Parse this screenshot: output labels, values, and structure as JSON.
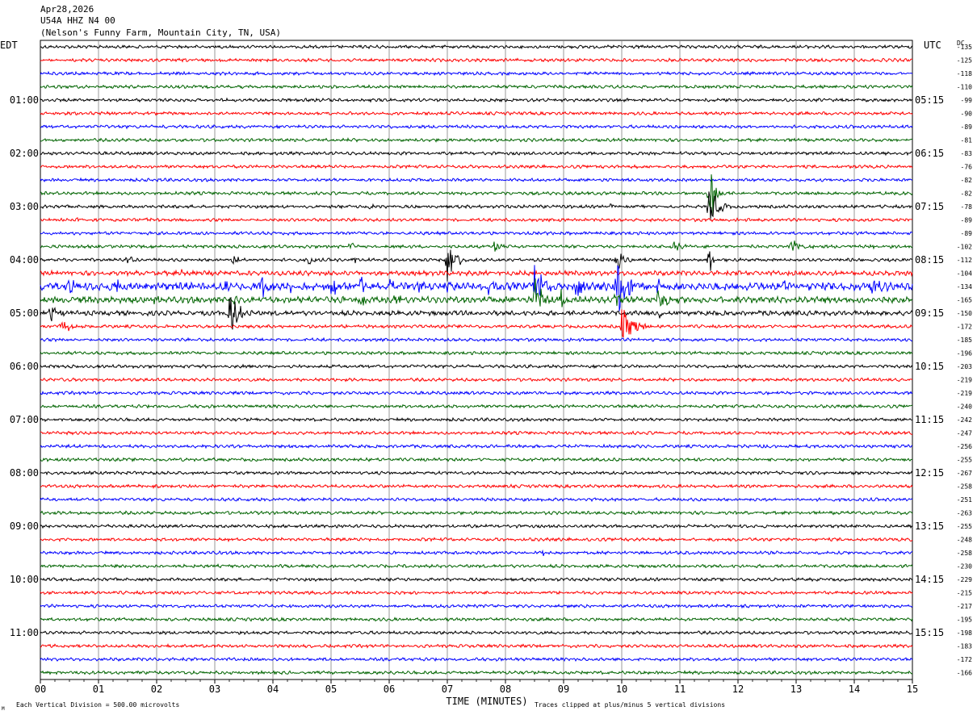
{
  "header": {
    "date": "Apr28,2026",
    "station": "U54A HHZ N4 00",
    "location": "(Nelson's Funny Farm, Mountain City, TN, USA)"
  },
  "left_axis_title": "EDT",
  "right_axis_title": "UTC",
  "dc_title": "DC",
  "footer": {
    "scale_note": "Each Vertical Division =  500.00 microvolts",
    "xlabel": "TIME (MINUTES)",
    "clip_note": "Traces clipped at plus/minus 5 vertical divisions",
    "corner_mark": "M"
  },
  "colors": {
    "cycle": [
      "#000000",
      "#ff0000",
      "#0000ff",
      "#006400"
    ],
    "grid": "#808080"
  },
  "chart_data": {
    "type": "line",
    "title": "",
    "xlabel": "TIME (MINUTES)",
    "ylabel": "",
    "xlim": [
      0,
      15
    ],
    "x_ticks": [
      "00",
      "01",
      "02",
      "03",
      "04",
      "05",
      "06",
      "07",
      "08",
      "09",
      "10",
      "11",
      "12",
      "13",
      "14",
      "15"
    ],
    "rows": 48,
    "minutes_per_row": 15,
    "left_labels": [
      "01:00",
      "02:00",
      "03:00",
      "04:00",
      "05:00",
      "06:00",
      "07:00",
      "08:00",
      "09:00",
      "10:00",
      "11:00"
    ],
    "right_labels": [
      "05:15",
      "06:15",
      "07:15",
      "08:15",
      "09:15",
      "10:15",
      "11:15",
      "12:15",
      "13:15",
      "14:15",
      "15:15"
    ],
    "dc_offsets": [
      "-135",
      "-125",
      "-118",
      "-110",
      "-99",
      "-90",
      "-89",
      "-81",
      "-83",
      "-76",
      "-82",
      "-82",
      "-78",
      "-89",
      "-89",
      "-102",
      "-112",
      "-104",
      "-134",
      "-165",
      "-150",
      "-172",
      "-185",
      "-196",
      "-203",
      "-219",
      "-219",
      "-240",
      "-242",
      "-247",
      "-256",
      "-255",
      "-267",
      "-258",
      "-251",
      "-263",
      "-255",
      "-248",
      "-258",
      "-230",
      "-229",
      "-215",
      "-217",
      "-195",
      "-198",
      "-183",
      "-172",
      "-166"
    ],
    "noise_amplitude": [
      2,
      2,
      2,
      2,
      2,
      2,
      2,
      2,
      2,
      2,
      2,
      2,
      2,
      2,
      2,
      2,
      2,
      3,
      5,
      4,
      3,
      2,
      2,
      2,
      2,
      2,
      2,
      2,
      2,
      2,
      2,
      2,
      2,
      2,
      2,
      2,
      2,
      2,
      2,
      2,
      2,
      2,
      2,
      2,
      2,
      2,
      2,
      2
    ],
    "events": [
      {
        "row": 11,
        "x": 11.5,
        "amp": 56,
        "dur": 0.2
      },
      {
        "row": 11,
        "x": 11.55,
        "amp": 18,
        "dur": 0.25
      },
      {
        "row": 12,
        "x": 5.6,
        "amp": 6,
        "dur": 0.25
      },
      {
        "row": 12,
        "x": 9.8,
        "amp": 5,
        "dur": 0.2
      },
      {
        "row": 12,
        "x": 11.5,
        "amp": 26,
        "dur": 0.4
      },
      {
        "row": 12,
        "x": 14.3,
        "amp": 5,
        "dur": 0.15
      },
      {
        "row": 13,
        "x": 0.6,
        "amp": 5,
        "dur": 0.15
      },
      {
        "row": 13,
        "x": 1.8,
        "amp": 3,
        "dur": 0.1
      },
      {
        "row": 15,
        "x": 5.3,
        "amp": 7,
        "dur": 0.25
      },
      {
        "row": 15,
        "x": 7.8,
        "amp": 9,
        "dur": 0.3
      },
      {
        "row": 15,
        "x": 10.9,
        "amp": 7,
        "dur": 0.3
      },
      {
        "row": 15,
        "x": 12.9,
        "amp": 12,
        "dur": 0.4
      },
      {
        "row": 15,
        "x": 14.3,
        "amp": 5,
        "dur": 0.15
      },
      {
        "row": 16,
        "x": 1.5,
        "amp": 5,
        "dur": 0.2
      },
      {
        "row": 16,
        "x": 3.3,
        "amp": 8,
        "dur": 0.25
      },
      {
        "row": 16,
        "x": 4.6,
        "amp": 10,
        "dur": 0.2
      },
      {
        "row": 16,
        "x": 5.4,
        "amp": 6,
        "dur": 0.15
      },
      {
        "row": 16,
        "x": 7.0,
        "amp": 34,
        "dur": 0.35
      },
      {
        "row": 16,
        "x": 9.9,
        "amp": 18,
        "dur": 0.3
      },
      {
        "row": 16,
        "x": 11.5,
        "amp": 30,
        "dur": 0.1
      },
      {
        "row": 17,
        "x": 2.4,
        "amp": 4,
        "dur": 0.2
      },
      {
        "row": 17,
        "x": 14.2,
        "amp": 5,
        "dur": 0.3
      },
      {
        "row": 18,
        "x": 0.5,
        "amp": 12,
        "dur": 0.2
      },
      {
        "row": 18,
        "x": 1.3,
        "amp": 14,
        "dur": 0.15
      },
      {
        "row": 18,
        "x": 3.2,
        "amp": 14,
        "dur": 0.2
      },
      {
        "row": 18,
        "x": 3.8,
        "amp": 16,
        "dur": 0.25
      },
      {
        "row": 18,
        "x": 4.3,
        "amp": 10,
        "dur": 0.15
      },
      {
        "row": 18,
        "x": 5.0,
        "amp": 22,
        "dur": 0.2
      },
      {
        "row": 18,
        "x": 5.5,
        "amp": 18,
        "dur": 0.2
      },
      {
        "row": 18,
        "x": 6.0,
        "amp": 16,
        "dur": 0.2
      },
      {
        "row": 18,
        "x": 6.5,
        "amp": 14,
        "dur": 0.15
      },
      {
        "row": 18,
        "x": 7.0,
        "amp": 12,
        "dur": 0.2
      },
      {
        "row": 18,
        "x": 7.7,
        "amp": 12,
        "dur": 0.3
      },
      {
        "row": 18,
        "x": 8.5,
        "amp": 40,
        "dur": 0.3
      },
      {
        "row": 18,
        "x": 9.2,
        "amp": 20,
        "dur": 0.3
      },
      {
        "row": 18,
        "x": 9.9,
        "amp": 50,
        "dur": 0.4
      },
      {
        "row": 18,
        "x": 10.6,
        "amp": 12,
        "dur": 0.2
      },
      {
        "row": 18,
        "x": 12.8,
        "amp": 10,
        "dur": 0.2
      },
      {
        "row": 18,
        "x": 14.3,
        "amp": 12,
        "dur": 0.3
      },
      {
        "row": 19,
        "x": 1.95,
        "amp": 5,
        "dur": 0.2
      },
      {
        "row": 19,
        "x": 3.3,
        "amp": 10,
        "dur": 0.2
      },
      {
        "row": 19,
        "x": 5.5,
        "amp": 12,
        "dur": 0.3
      },
      {
        "row": 19,
        "x": 6.1,
        "amp": 8,
        "dur": 0.25
      },
      {
        "row": 19,
        "x": 7.2,
        "amp": 6,
        "dur": 0.2
      },
      {
        "row": 19,
        "x": 8.5,
        "amp": 30,
        "dur": 0.3
      },
      {
        "row": 19,
        "x": 8.95,
        "amp": 14,
        "dur": 0.2
      },
      {
        "row": 19,
        "x": 9.9,
        "amp": 20,
        "dur": 0.2
      },
      {
        "row": 19,
        "x": 10.6,
        "amp": 14,
        "dur": 0.4
      },
      {
        "row": 20,
        "x": 0.15,
        "amp": 12,
        "dur": 0.3
      },
      {
        "row": 20,
        "x": 3.25,
        "amp": 30,
        "dur": 0.4
      },
      {
        "row": 20,
        "x": 10.6,
        "amp": 10,
        "dur": 0.3
      },
      {
        "row": 21,
        "x": 0.35,
        "amp": 8,
        "dur": 0.6
      },
      {
        "row": 21,
        "x": 10.0,
        "amp": 24,
        "dur": 0.55
      },
      {
        "row": 38,
        "x": 8.65,
        "amp": 8,
        "dur": 0.08
      },
      {
        "row": 44,
        "x": 7.6,
        "amp": 3,
        "dur": 0.15
      },
      {
        "row": 30,
        "x": 12.4,
        "amp": 3,
        "dur": 0.2
      }
    ]
  }
}
